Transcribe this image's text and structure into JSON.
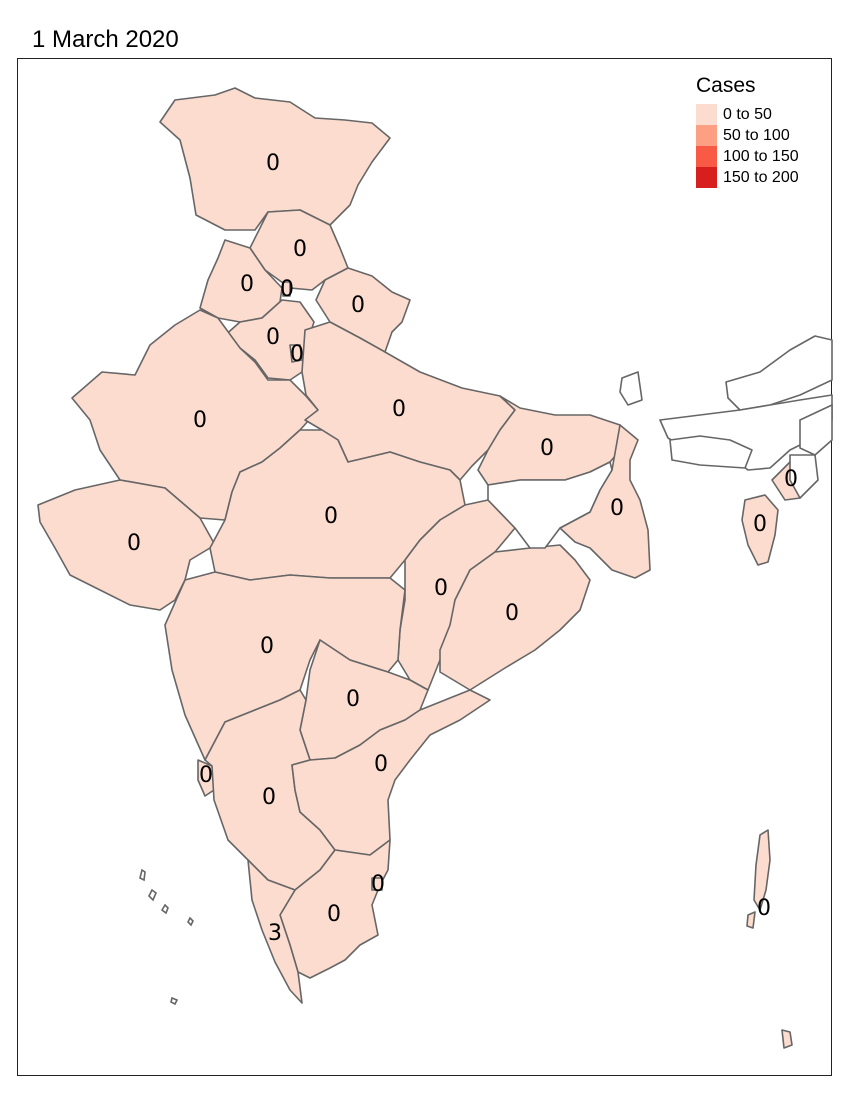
{
  "title": "1 March 2020",
  "legend": {
    "title": "Cases",
    "items": [
      {
        "label": "0 to 50",
        "color": "#fddcd0"
      },
      {
        "label": "50 to 100",
        "color": "#fc9f82"
      },
      {
        "label": "100 to 150",
        "color": "#f85a45"
      },
      {
        "label": "150 to 200",
        "color": "#d7201e"
      }
    ]
  },
  "colors": {
    "fill": "#fddcd0",
    "border": "#666666",
    "unfilled": "#ffffff"
  },
  "state_values": {
    "jammu_kashmir": "0",
    "himachal": "0",
    "punjab": "0",
    "chandigarh": "0",
    "uttarakhand": "0",
    "haryana": "0",
    "delhi": "0",
    "rajasthan": "0",
    "uttar_pradesh": "0",
    "bihar": "0",
    "gujarat": "0",
    "madhya_pradesh": "0",
    "west_bengal": "0",
    "chhattisgarh": "0",
    "odisha": "0",
    "maharashtra": "0",
    "telangana": "0",
    "goa": "0",
    "andhra_pradesh": "0",
    "karnataka": "0",
    "puducherry": "0",
    "tamil_nadu": "0",
    "kerala": "3",
    "andaman_nicobar": "0",
    "tripura": "0",
    "mizoram": "0"
  }
}
